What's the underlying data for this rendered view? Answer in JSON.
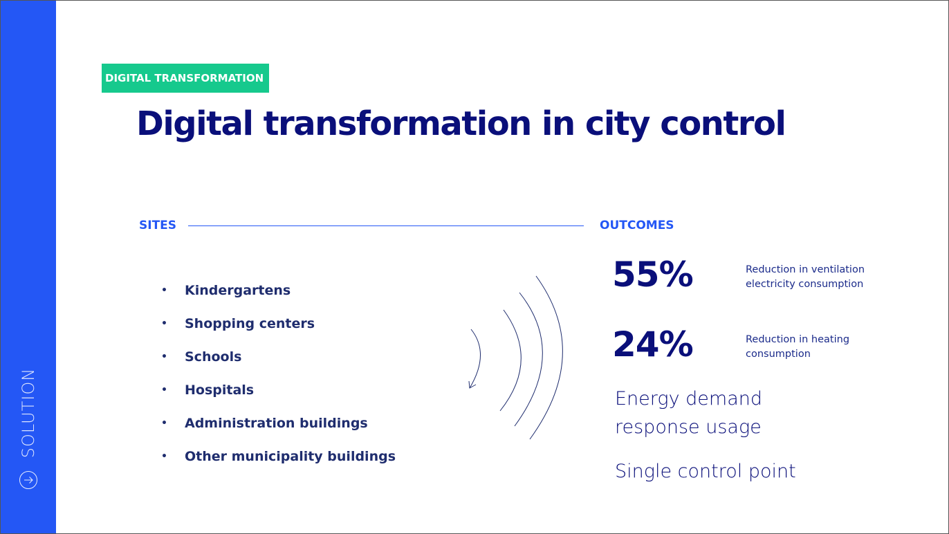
{
  "sidebar": {
    "label": "SOLUTION",
    "icon": "arrow-right-circle-icon",
    "color": "#2457f5"
  },
  "header": {
    "tag": "DIGITAL TRANSFORMATION",
    "title": "Digital transformation in city control"
  },
  "sites": {
    "label": "SITES",
    "items": [
      "Kindergartens",
      "Shopping centers",
      "Schools",
      "Hospitals",
      "Administration buildings",
      "Other municipality buildings"
    ]
  },
  "outcomes": {
    "label": "OUTCOMES",
    "stats": [
      {
        "value": "55%",
        "description": "Reduction in ventilation electricity consumption"
      },
      {
        "value": "24%",
        "description": "Reduction in heating consumption"
      }
    ],
    "highlights": [
      "Energy demand response usage",
      "Single control point"
    ]
  },
  "colors": {
    "accent": "#2457f5",
    "tag": "#16c98d",
    "title": "#0a0f7a"
  }
}
